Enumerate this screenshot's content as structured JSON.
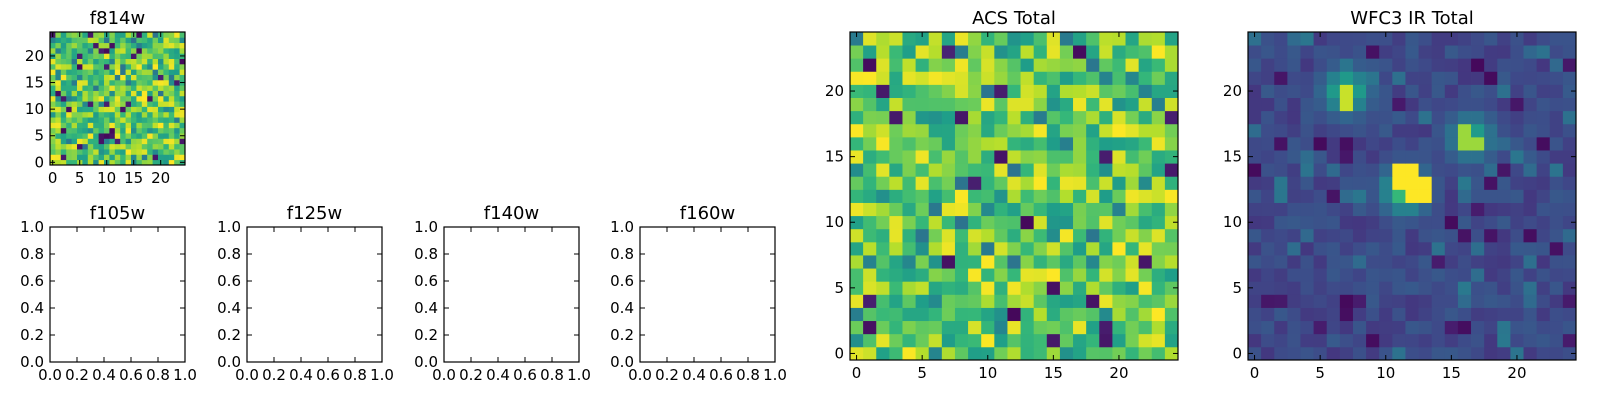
{
  "chart_data": [
    {
      "id": "f814w",
      "type": "heatmap",
      "title": "f814w",
      "colormap": "viridis",
      "grid_size": 25,
      "pattern": "noise",
      "xlim": [
        -0.5,
        24.5
      ],
      "ylim": [
        -0.5,
        24.5
      ],
      "xticks": [
        0,
        5,
        10,
        15,
        20
      ],
      "yticks": [
        0,
        5,
        10,
        15,
        20
      ],
      "xlabel": "",
      "ylabel": ""
    },
    {
      "id": "f105w",
      "type": "heatmap",
      "title": "f105w",
      "empty": true,
      "xlim": [
        0,
        1
      ],
      "ylim": [
        0,
        1
      ],
      "xticks": [
        "0.0",
        "0.2",
        "0.4",
        "0.6",
        "0.8",
        "1.0"
      ],
      "yticks": [
        "0.0",
        "0.2",
        "0.4",
        "0.6",
        "0.8",
        "1.0"
      ]
    },
    {
      "id": "f125w",
      "type": "heatmap",
      "title": "f125w",
      "empty": true,
      "xlim": [
        0,
        1
      ],
      "ylim": [
        0,
        1
      ],
      "xticks": [
        "0.0",
        "0.2",
        "0.4",
        "0.6",
        "0.8",
        "1.0"
      ],
      "yticks": [
        "0.0",
        "0.2",
        "0.4",
        "0.6",
        "0.8",
        "1.0"
      ]
    },
    {
      "id": "f140w",
      "type": "heatmap",
      "title": "f140w",
      "empty": true,
      "xlim": [
        0,
        1
      ],
      "ylim": [
        0,
        1
      ],
      "xticks": [
        "0.0",
        "0.2",
        "0.4",
        "0.6",
        "0.8",
        "1.0"
      ],
      "yticks": [
        "0.0",
        "0.2",
        "0.4",
        "0.6",
        "0.8",
        "1.0"
      ]
    },
    {
      "id": "f160w",
      "type": "heatmap",
      "title": "f160w",
      "empty": true,
      "xlim": [
        0,
        1
      ],
      "ylim": [
        0,
        1
      ],
      "xticks": [
        "0.0",
        "0.2",
        "0.4",
        "0.6",
        "0.8",
        "1.0"
      ],
      "yticks": [
        "0.0",
        "0.2",
        "0.4",
        "0.6",
        "0.8",
        "1.0"
      ]
    },
    {
      "id": "acs-total",
      "type": "heatmap",
      "title": "ACS Total",
      "colormap": "viridis",
      "grid_size": 25,
      "pattern": "noise",
      "xlim": [
        -0.5,
        24.5
      ],
      "ylim": [
        -0.5,
        24.5
      ],
      "xticks": [
        0,
        5,
        10,
        15,
        20
      ],
      "yticks": [
        0,
        5,
        10,
        15,
        20
      ]
    },
    {
      "id": "wfc3-ir-total",
      "type": "heatmap",
      "title": "WFC3 IR Total",
      "colormap": "viridis",
      "grid_size": 25,
      "pattern": "sources",
      "background_level": 0.22,
      "sources": [
        {
          "x": 11.5,
          "y": 12.5,
          "peak": 1.0,
          "shape": [
            [
              11,
              13
            ],
            [
              12,
              12
            ],
            [
              12,
              13
            ],
            [
              13,
              12
            ],
            [
              13,
              13
            ],
            [
              11,
              14
            ],
            [
              12,
              14
            ]
          ]
        },
        {
          "x": 7,
          "y": 20,
          "peak": 0.92,
          "shape": [
            [
              7,
              19
            ],
            [
              7,
              20
            ]
          ]
        },
        {
          "x": 16.5,
          "y": 16.5,
          "peak": 0.85,
          "shape": [
            [
              16,
              16
            ],
            [
              16,
              17
            ],
            [
              17,
              16
            ]
          ]
        }
      ],
      "xlim": [
        -0.5,
        24.5
      ],
      "ylim": [
        -0.5,
        24.5
      ],
      "xticks": [
        0,
        5,
        10,
        15,
        20
      ],
      "yticks": [
        0,
        5,
        10,
        15,
        20
      ]
    }
  ]
}
